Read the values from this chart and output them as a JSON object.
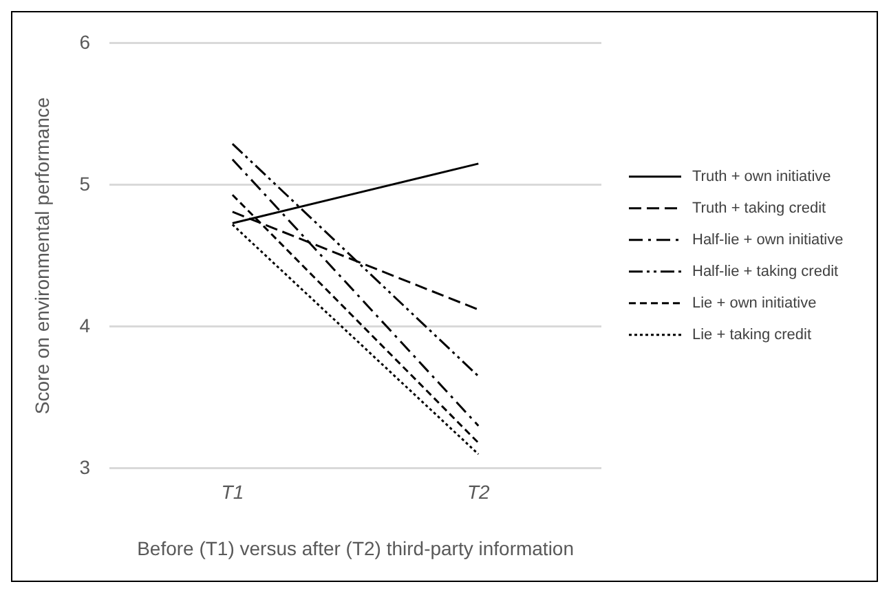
{
  "chart_data": {
    "type": "line",
    "xlabel": "Before (T1) versus after (T2) third-party information",
    "ylabel": "Score on environmental performance",
    "categories": [
      "T1",
      "T2"
    ],
    "series": [
      {
        "name": "Truth + own initiative",
        "color": "#000000",
        "line_style": "solid",
        "values": [
          4.73,
          5.15
        ]
      },
      {
        "name": "Truth + taking credit",
        "color": "#000000",
        "line_style": "dashed",
        "values": [
          4.81,
          4.12
        ]
      },
      {
        "name": "Half-lie + own initiative",
        "color": "#000000",
        "line_style": "dashdot",
        "values": [
          5.18,
          3.3
        ]
      },
      {
        "name": "Half-lie + taking credit",
        "color": "#000000",
        "line_style": "dashdotdot",
        "values": [
          5.29,
          3.65
        ]
      },
      {
        "name": "Lie + own initiative",
        "color": "#000000",
        "line_style": "shortdash",
        "values": [
          4.93,
          3.18
        ]
      },
      {
        "name": "Lie + taking credit",
        "color": "#000000",
        "line_style": "dotted",
        "values": [
          4.72,
          3.1
        ]
      }
    ],
    "ylim": [
      3,
      6
    ],
    "yticks": [
      3,
      4,
      5,
      6
    ],
    "grid": "y",
    "legend": "right",
    "marker": "none"
  }
}
